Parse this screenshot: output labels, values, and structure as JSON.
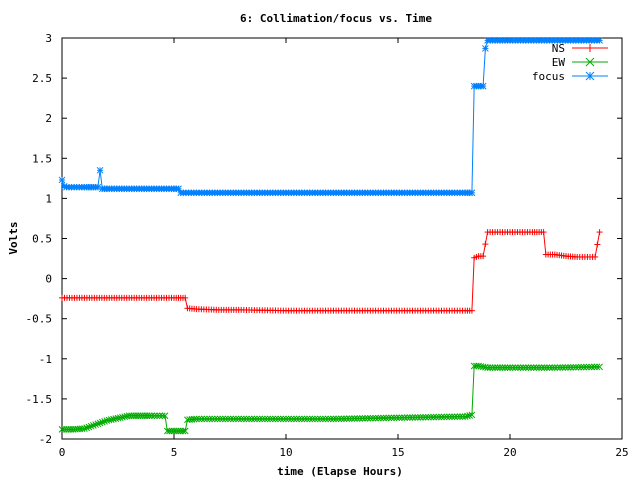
{
  "chart_data": {
    "type": "line",
    "title": "6: Collimation/focus vs. Time",
    "xlabel": "time (Elapse Hours)",
    "ylabel": "Volts",
    "xlim": [
      0,
      25
    ],
    "ylim": [
      -2,
      3
    ],
    "xticks": [
      0,
      5,
      10,
      15,
      20,
      25
    ],
    "yticks": [
      -2,
      -1.5,
      -1,
      -0.5,
      0,
      0.5,
      1,
      1.5,
      2,
      2.5,
      3
    ],
    "xtick_labels": [
      "0",
      "5",
      "10",
      "15",
      "20",
      "25"
    ],
    "ytick_labels": [
      "-2",
      "-1.5",
      "-1",
      "-0.5",
      "0",
      "0.5",
      "1",
      "1.5",
      "2",
      "2.5",
      "3"
    ],
    "grid": false,
    "legend_position": "top-right",
    "series": [
      {
        "name": "NS",
        "color": "#ff0000",
        "marker": "plus",
        "x": [
          0,
          1,
          2,
          3,
          4,
          5,
          5.5,
          5.6,
          6,
          7,
          8,
          10,
          12,
          14,
          16,
          18,
          18.3,
          18.4,
          18.6,
          18.8,
          19,
          20,
          21,
          21.5,
          21.6,
          22,
          22.5,
          23,
          23.8,
          24
        ],
        "y": [
          -0.24,
          -0.24,
          -0.24,
          -0.24,
          -0.24,
          -0.24,
          -0.24,
          -0.37,
          -0.38,
          -0.39,
          -0.39,
          -0.4,
          -0.4,
          -0.4,
          -0.4,
          -0.4,
          -0.4,
          0.26,
          0.28,
          0.28,
          0.58,
          0.58,
          0.58,
          0.58,
          0.3,
          0.3,
          0.28,
          0.27,
          0.27,
          0.58
        ]
      },
      {
        "name": "EW",
        "color": "#00aa00",
        "marker": "cross",
        "x": [
          0,
          0.5,
          1,
          1.5,
          2,
          2.5,
          3,
          3.5,
          4,
          4.6,
          4.7,
          5,
          5.5,
          5.6,
          6,
          8,
          10,
          12,
          14,
          16,
          18,
          18.3,
          18.4,
          18.6,
          19,
          20,
          22,
          24
        ],
        "y": [
          -1.88,
          -1.88,
          -1.87,
          -1.82,
          -1.77,
          -1.74,
          -1.71,
          -1.71,
          -1.71,
          -1.71,
          -1.9,
          -1.9,
          -1.9,
          -1.76,
          -1.75,
          -1.75,
          -1.75,
          -1.75,
          -1.74,
          -1.73,
          -1.72,
          -1.7,
          -1.09,
          -1.09,
          -1.11,
          -1.11,
          -1.11,
          -1.1
        ]
      },
      {
        "name": "focus",
        "color": "#0080ff",
        "marker": "star",
        "x": [
          0,
          0.1,
          0.2,
          1,
          1.5,
          1.6,
          1.7,
          1.8,
          2,
          3,
          4,
          5,
          5.2,
          5.3,
          6,
          8,
          10,
          12,
          14,
          16,
          18,
          18.3,
          18.4,
          18.5,
          18.8,
          18.9,
          19,
          20,
          22,
          24
        ],
        "y": [
          1.23,
          1.15,
          1.14,
          1.14,
          1.14,
          1.14,
          1.35,
          1.12,
          1.12,
          1.12,
          1.12,
          1.12,
          1.12,
          1.07,
          1.07,
          1.07,
          1.07,
          1.07,
          1.07,
          1.07,
          1.07,
          1.07,
          2.4,
          2.4,
          2.4,
          2.87,
          2.97,
          2.97,
          2.97,
          2.97
        ]
      }
    ]
  }
}
